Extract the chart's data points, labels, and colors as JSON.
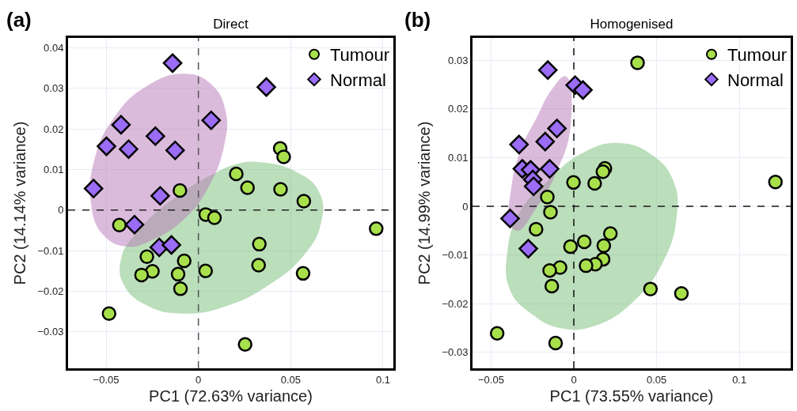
{
  "chart_data": [
    {
      "type": "scatter",
      "title": "Direct",
      "xlabel": "PC1 (72.63% variance)",
      "ylabel": "PC2 (14.14% variance)",
      "annotations": [
        "(a)"
      ],
      "xlim": [
        -0.0706,
        0.1056
      ],
      "ylim": [
        -0.039,
        0.0424
      ],
      "xticks": [
        {
          "value": -0.05,
          "label": "−0.05"
        },
        0,
        0.05,
        0.1
      ],
      "yticks": [
        {
          "value": -0.03,
          "label": "−0.03"
        },
        {
          "value": -0.02,
          "label": "−0.02"
        },
        {
          "value": -0.01,
          "label": "−0.01"
        },
        0,
        0.01,
        0.02,
        0.03,
        0.04
      ],
      "grid": true,
      "legend": "top right",
      "ref_lines": [
        {
          "axis": "x",
          "value": 0,
          "color": "#555555",
          "line_style": "dashed"
        },
        {
          "axis": "y",
          "value": 0,
          "color": "#222222",
          "line_style": "dashed"
        }
      ],
      "series": [
        {
          "type": "area",
          "color": "#79be79",
          "x": [
            0.0333,
            0.0527,
            0.0655,
            0.0663,
            0.057,
            0.0384,
            0.0155,
            -0.0074,
            -0.0275,
            -0.0404,
            -0.0418,
            -0.0332,
            -0.0146,
            0.0069,
            0.0212,
            0.0333
          ],
          "values": [
            0.0118,
            0.0095,
            0.0044,
            -0.0034,
            -0.0112,
            -0.0184,
            -0.0236,
            -0.0255,
            -0.0236,
            -0.0184,
            -0.0119,
            -0.0054,
            0.0024,
            0.0086,
            0.0114,
            0.0118
          ]
        },
        {
          "type": "area",
          "color": "#b97ab9",
          "x": [
            -0.0074,
            0.0069,
            0.0147,
            0.014,
            0.0054,
            -0.0074,
            -0.0246,
            -0.0389,
            -0.0518,
            -0.0582,
            -0.0561,
            -0.0461,
            -0.0289,
            -0.0074
          ],
          "values": [
            0.0336,
            0.031,
            0.0245,
            0.016,
            0.0056,
            -0.0021,
            -0.0073,
            -0.009,
            -0.006,
            0.0018,
            0.0128,
            0.0225,
            0.0303,
            0.0336
          ]
        },
        {
          "name": "Tumour",
          "color": "#a8e04c",
          "marker": "circle",
          "x": [
            0.0443,
            0.0462,
            0.0205,
            0.0266,
            0.0445,
            0.0571,
            -0.01,
            0.004,
            0.0087,
            -0.0428,
            0.0963,
            0.033,
            0.0326,
            0.0567,
            -0.0279,
            -0.0077,
            -0.0249,
            -0.0308,
            -0.011,
            0.0039,
            -0.0097,
            -0.0484,
            0.0253
          ],
          "values": [
            0.0152,
            0.0131,
            0.0089,
            0.0055,
            0.0051,
            0.0022,
            0.0048,
            -0.0011,
            -0.0019,
            -0.0037,
            -0.0046,
            -0.0084,
            -0.0136,
            -0.0156,
            -0.0115,
            -0.0125,
            -0.0151,
            -0.016,
            -0.0158,
            -0.015,
            -0.0194,
            -0.0255,
            -0.0331
          ]
        },
        {
          "name": "Normal",
          "color": "#9b6cf6",
          "marker": "diamond",
          "x": [
            -0.014,
            0.0368,
            -0.0419,
            0.0069,
            -0.0498,
            -0.0233,
            -0.0378,
            -0.0126,
            -0.0568,
            -0.0207,
            -0.0346,
            -0.0212,
            -0.0146
          ],
          "values": [
            0.0362,
            0.0303,
            0.021,
            0.0221,
            0.0157,
            0.0182,
            0.015,
            0.0147,
            0.0053,
            0.0035,
            -0.0036,
            -0.0092,
            -0.0086
          ]
        }
      ]
    },
    {
      "type": "scatter",
      "title": "Homogenised",
      "xlabel": "PC1 (73.55% variance)",
      "ylabel": "PC2 (14.99% variance)",
      "annotations": [
        "(b)"
      ],
      "xlim": [
        -0.0612,
        0.131
      ],
      "ylim": [
        -0.0333,
        0.0346
      ],
      "xticks": [
        {
          "value": -0.05,
          "label": "−0.05"
        },
        0,
        0.05,
        0.1
      ],
      "yticks": [
        {
          "value": -0.03,
          "label": "−0.03"
        },
        {
          "value": -0.02,
          "label": "−0.02"
        },
        {
          "value": -0.01,
          "label": "−0.01"
        },
        0,
        0.01,
        0.02,
        0.03
      ],
      "grid": true,
      "legend": "top right",
      "ref_lines": [
        {
          "axis": "x",
          "value": 0,
          "color": "#111111",
          "line_style": "dashed"
        },
        {
          "axis": "y",
          "value": 0,
          "color": "#1a1a1a",
          "line_style": "dashed"
        }
      ],
      "series": [
        {
          "type": "area",
          "color": "#79be79",
          "x": [
            0.0275,
            0.0479,
            0.0604,
            0.062,
            0.0542,
            0.0369,
            0.0133,
            -0.0071,
            -0.0259,
            -0.0385,
            -0.04,
            -0.0322,
            -0.0165,
            0.0055,
            0.0275
          ],
          "values": [
            0.013,
            0.0104,
            0.005,
            -0.0025,
            -0.0112,
            -0.0193,
            -0.0245,
            -0.0251,
            -0.022,
            -0.0172,
            -0.009,
            -0.0009,
            0.005,
            0.011,
            0.013
          ]
        },
        {
          "type": "area",
          "color": "#b97ab9",
          "x": [
            -0.0047,
            -0.002,
            -0.0102,
            -0.0228,
            -0.0338,
            -0.0385,
            -0.0377,
            -0.0322,
            -0.0228,
            -0.0133,
            -0.0047
          ],
          "values": [
            0.0267,
            0.0164,
            0.0072,
            -0.0004,
            -0.005,
            -0.0036,
            0.0039,
            0.0115,
            0.018,
            0.024,
            0.0267
          ]
        },
        {
          "name": "Tumour",
          "color": "#a8e04c",
          "marker": "circle",
          "x": [
            0.0385,
            0.1218,
            0.0188,
            0.0176,
            -0.0002,
            0.0126,
            -0.016,
            -0.0141,
            -0.0228,
            0.0221,
            -0.002,
            0.0063,
            0.0181,
            0.0177,
            0.013,
            0.0074,
            -0.0083,
            -0.0146,
            -0.0133,
            0.0463,
            0.065,
            -0.0463,
            -0.011
          ],
          "values": [
            0.0295,
            0.005,
            0.0078,
            0.0071,
            0.0049,
            0.0047,
            0.0019,
            -0.0012,
            -0.0047,
            -0.0056,
            -0.0083,
            -0.0073,
            -0.0081,
            -0.0109,
            -0.0119,
            -0.0122,
            -0.0126,
            -0.0132,
            -0.0164,
            -0.017,
            -0.0179,
            -0.0261,
            -0.0281
          ]
        },
        {
          "name": "Normal",
          "color": "#9b6cf6",
          "marker": "diamond",
          "x": [
            -0.0157,
            0.0008,
            0.0055,
            -0.0102,
            -0.0173,
            -0.0331,
            -0.0311,
            -0.0261,
            -0.0146,
            -0.0248,
            -0.0243,
            -0.0385,
            -0.0275
          ],
          "values": [
            0.028,
            0.0249,
            0.0239,
            0.016,
            0.0133,
            0.0127,
            0.0077,
            0.0075,
            0.0077,
            0.0055,
            0.0041,
            -0.0025,
            -0.0087
          ]
        }
      ]
    }
  ]
}
